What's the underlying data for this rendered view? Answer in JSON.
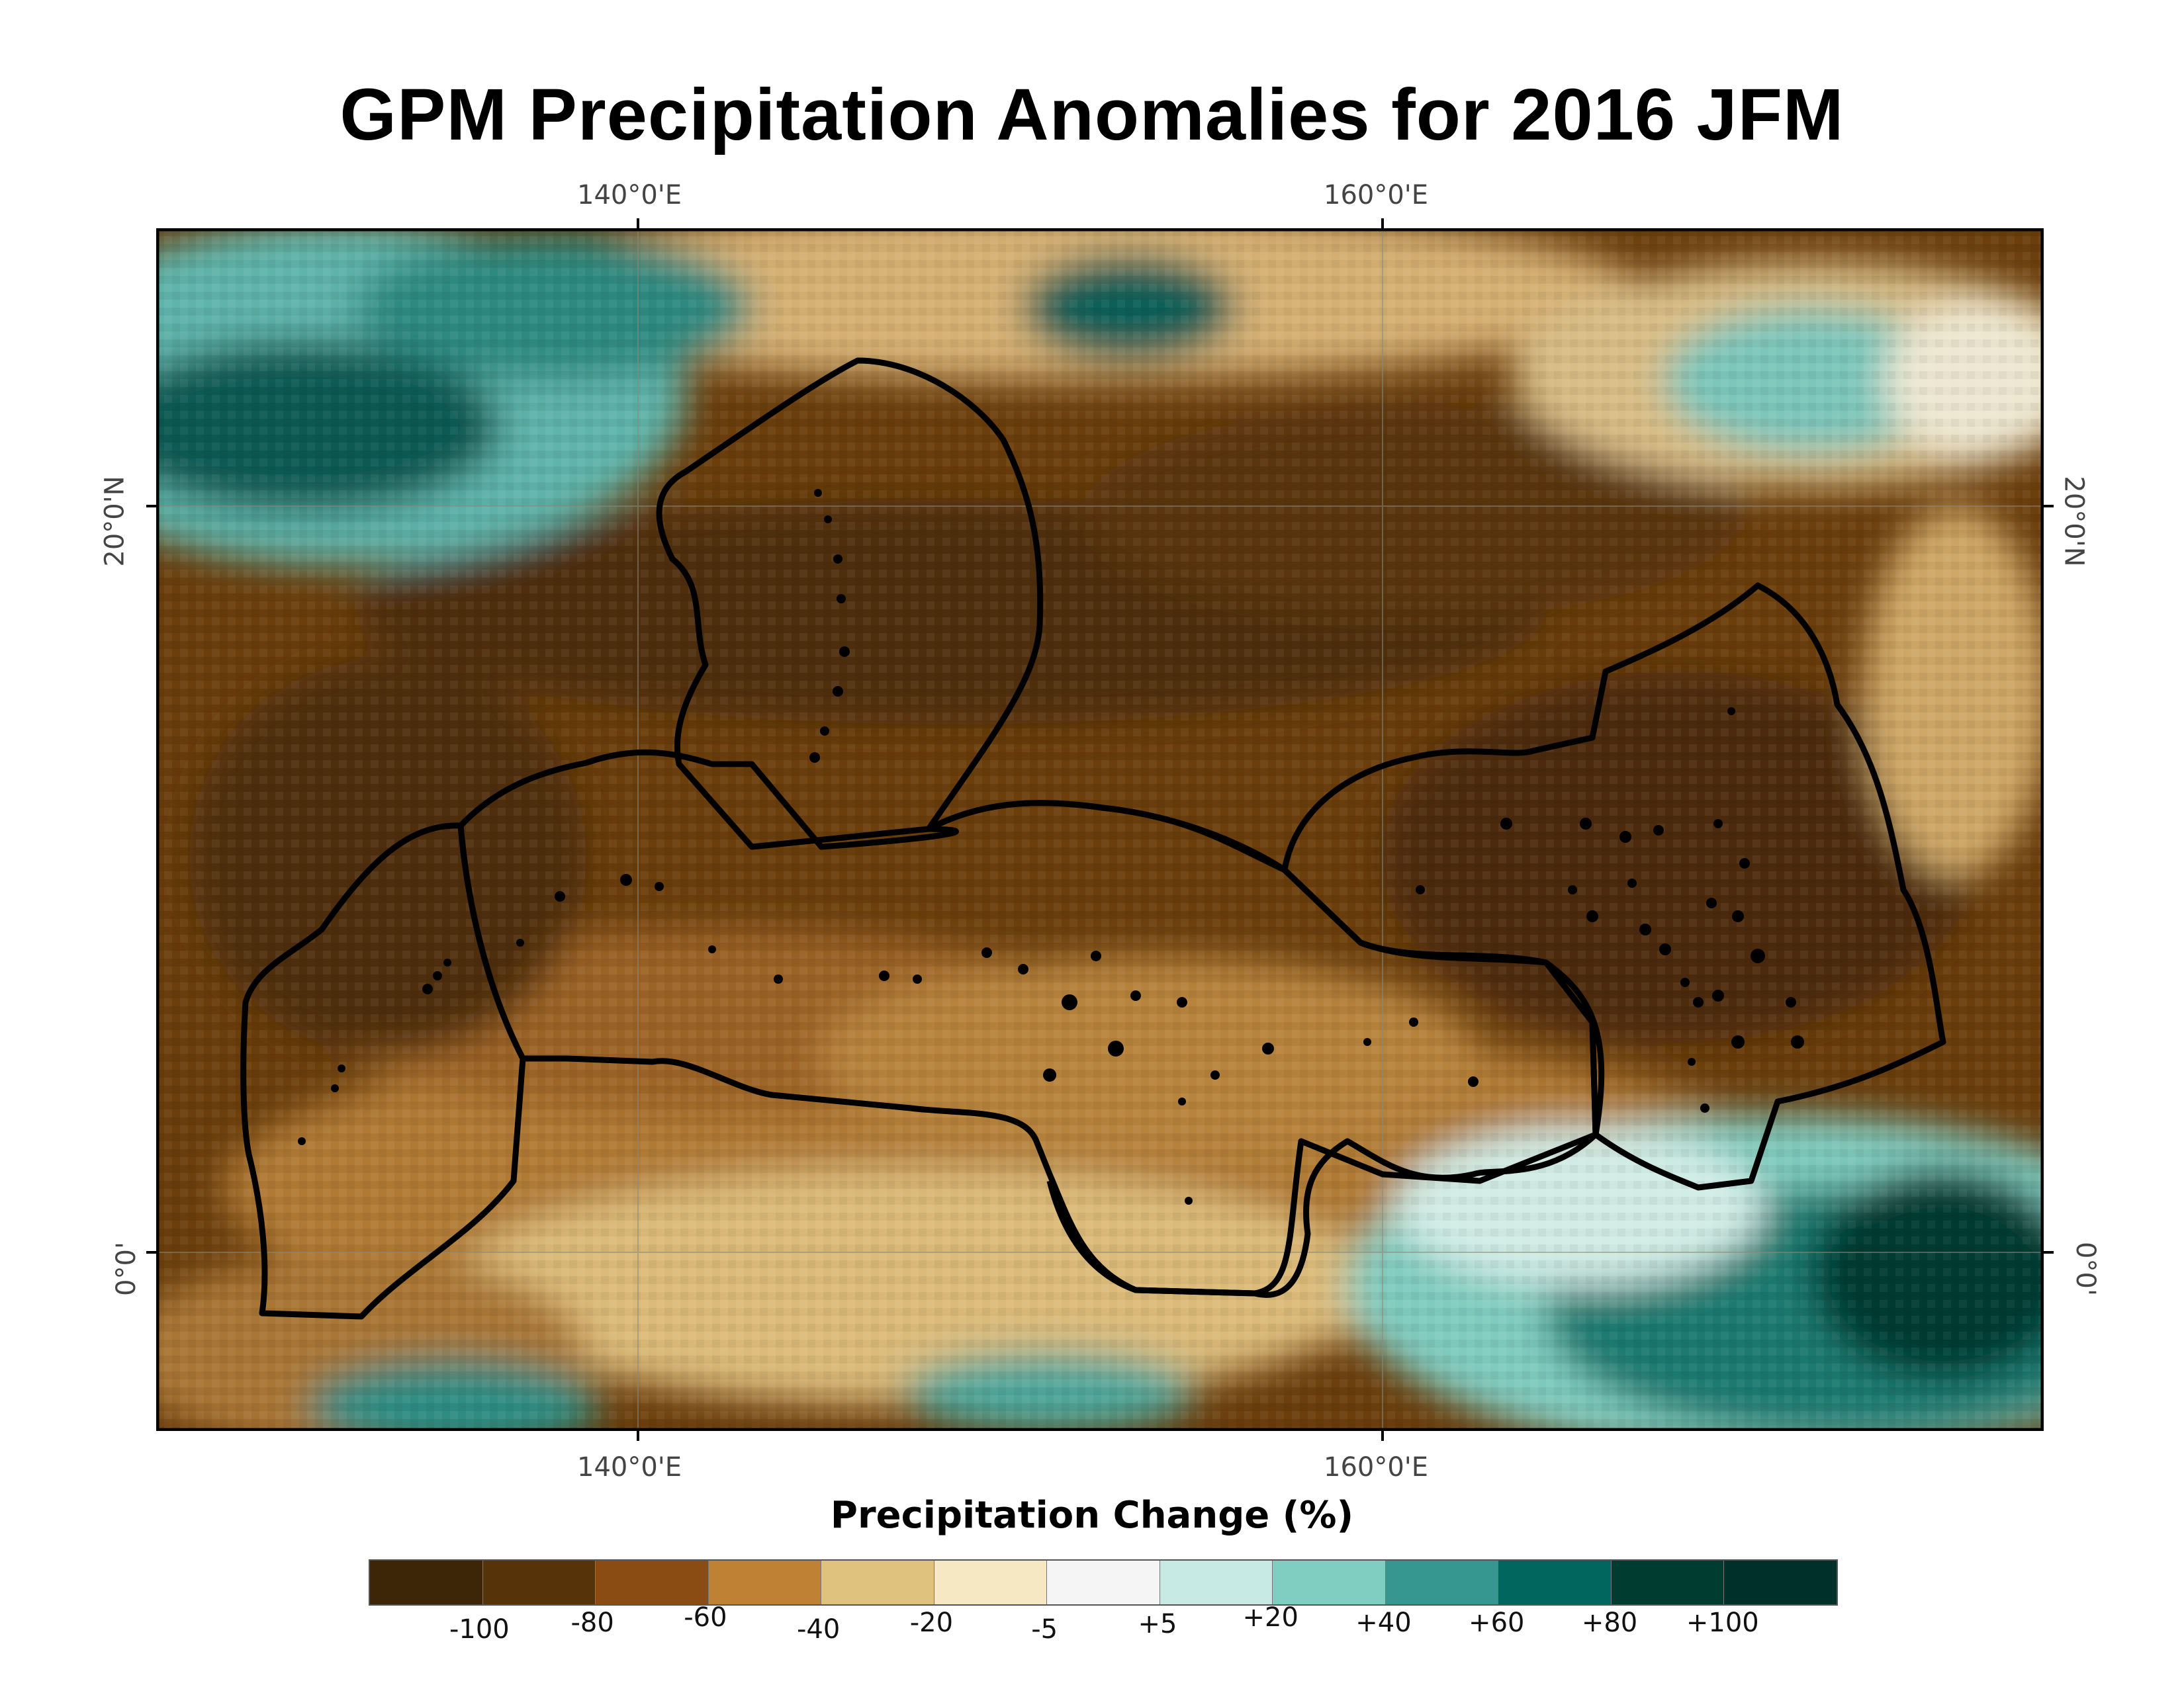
{
  "title": "GPM Precipitation Anomalies for 2016 JFM",
  "axes": {
    "top_ticks": [
      "140°0'E",
      "160°0'E"
    ],
    "bottom_ticks": [
      "140°0'E",
      "160°0'E"
    ],
    "left_ticks": [
      "20°0'N",
      "0°0'"
    ],
    "right_ticks": [
      "20°0'N",
      "0°0'"
    ]
  },
  "map": {
    "lon_range": [
      127,
      178
    ],
    "lat_range": [
      -5,
      27.5
    ],
    "graticule_lons": [
      140,
      160
    ],
    "graticule_lats": [
      0,
      20
    ],
    "pattern": "dry anomalies (brown) over central tropical Pacific band; wet anomalies (teal) in north-west corner, north-east and south-east",
    "outlined_regions": 5
  },
  "legend": {
    "title": "Precipitation Change (%)",
    "colors": [
      "#3d2507",
      "#57330a",
      "#8a4c12",
      "#bf8133",
      "#dfc27d",
      "#f6e8c3",
      "#f5f5f5",
      "#c7eae5",
      "#80cdc1",
      "#35978f",
      "#01665e",
      "#003c30",
      "#00302a"
    ],
    "labels": [
      "-100",
      "-80",
      "-60",
      "-40",
      "-20",
      "-5",
      "+5",
      "+20",
      "+40",
      "+60",
      "+80",
      "+100"
    ]
  }
}
